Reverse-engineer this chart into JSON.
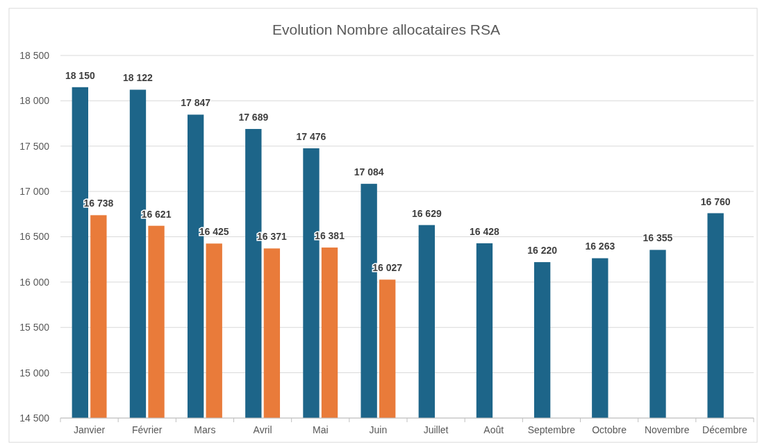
{
  "chart_data": {
    "type": "bar",
    "title": "Evolution Nombre allocataires RSA",
    "categories": [
      "Janvier",
      "Février",
      "Mars",
      "Avril",
      "Mai",
      "Juin",
      "Juillet",
      "Août",
      "Septembre",
      "Octobre",
      "Novembre",
      "Décembre"
    ],
    "series": [
      {
        "color": "#1d6589",
        "values": [
          18150,
          18122,
          17847,
          17689,
          17476,
          17084,
          16629,
          16428,
          16220,
          16263,
          16355,
          16760
        ],
        "value_labels": [
          "18 150",
          "18 122",
          "17 847",
          "17 689",
          "17 476",
          "17 084",
          "16 629",
          "16 428",
          "16 220",
          "16 263",
          "16 355",
          "16 760"
        ]
      },
      {
        "color": "#e97b3a",
        "values": [
          16738,
          16621,
          16425,
          16371,
          16381,
          16027,
          null,
          null,
          null,
          null,
          null,
          null
        ],
        "value_labels": [
          "16 738",
          "16 621",
          "16 425",
          "16 371",
          "16 381",
          "16 027",
          null,
          null,
          null,
          null,
          null,
          null
        ]
      }
    ],
    "ylim": [
      14500,
      18500
    ],
    "yticks": [
      {
        "value": 14500,
        "label": "14 500"
      },
      {
        "value": 15000,
        "label": "15 000"
      },
      {
        "value": 15500,
        "label": "15 500"
      },
      {
        "value": 16000,
        "label": "16 000"
      },
      {
        "value": 16500,
        "label": "16 500"
      },
      {
        "value": 17000,
        "label": "17 000"
      },
      {
        "value": 17500,
        "label": "17 500"
      },
      {
        "value": 18000,
        "label": "18 000"
      },
      {
        "value": 18500,
        "label": "18 500"
      }
    ],
    "grid": "y"
  }
}
